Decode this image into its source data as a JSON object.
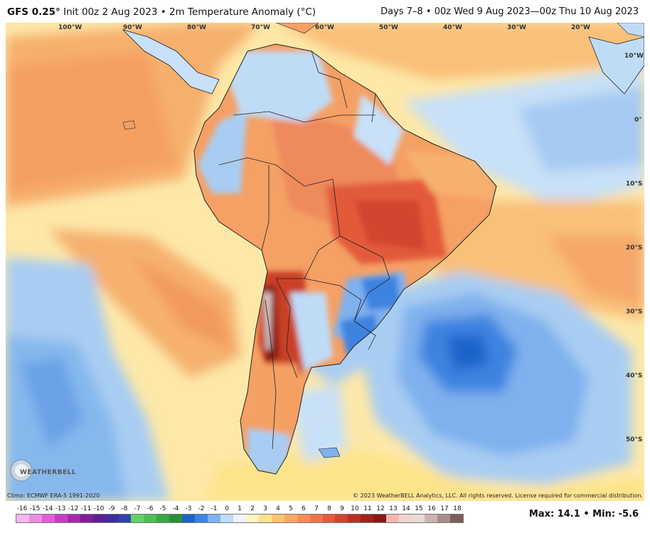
{
  "header": {
    "model": "GFS 0.25",
    "degree": "°",
    "title_rest": "Init 00z 2 Aug 2023 • 2m Temperature Anomaly (°C)",
    "valid": "Days 7–8 • 00z Wed 9 Aug 2023—00z Thu 10 Aug 2023"
  },
  "longitudes": [
    "100°W",
    "90°W",
    "80°W",
    "70°W",
    "60°W",
    "50°W",
    "40°W",
    "30°W",
    "20°W",
    "10°W"
  ],
  "latitudes": [
    "0°",
    "10°S",
    "20°S",
    "30°S",
    "40°S",
    "50°S"
  ],
  "footer": {
    "climo": "Climo: ECMWF ERA-5 1991-2020",
    "copyright": "© 2023 WeatherBELL Analytics, LLC. All rights reserved. License required for commercial distribution."
  },
  "logo": {
    "text": "WEATHERBELL"
  },
  "scale": {
    "ticks": [
      "-16",
      "-15",
      "-14",
      "-13",
      "-12",
      "-11",
      "-10",
      "-9",
      "-8",
      "-7",
      "-6",
      "-5",
      "-4",
      "-3",
      "-2",
      "-1",
      "0",
      "1",
      "2",
      "3",
      "4",
      "5",
      "6",
      "7",
      "8",
      "9",
      "10",
      "11",
      "12",
      "13",
      "14",
      "15",
      "16",
      "17",
      "18"
    ],
    "colors": [
      "#f7b6f0",
      "#ee8be6",
      "#e05ed6",
      "#c83ec3",
      "#a42aa8",
      "#7e1f96",
      "#5a2193",
      "#3d2e9c",
      "#2f44ad",
      "#66d16a",
      "#4fbf55",
      "#36a742",
      "#2a8e38",
      "#1e63c9",
      "#3d83e0",
      "#7fb1ee",
      "#bfdcf7",
      "#f1f3fb",
      "#fdf3c2",
      "#fde48a",
      "#fcc373",
      "#f9a866",
      "#f48d58",
      "#ee744b",
      "#e35a3b",
      "#d3442e",
      "#bb3124",
      "#a0221b",
      "#861a16",
      "#f4b7b1",
      "#f1d3cf",
      "#e7dbd8",
      "#c9b5b2",
      "#a88d8b",
      "#7c5c5a"
    ]
  },
  "stats": {
    "max_label": "Max:",
    "max": "14.1",
    "sep": "•",
    "min_label": "Min:",
    "min": "-5.6"
  },
  "colors": {
    "land_warm": "#ee8a5c",
    "ocean_cool": "#7fb1ee",
    "accent_red": "#c92a1e"
  }
}
